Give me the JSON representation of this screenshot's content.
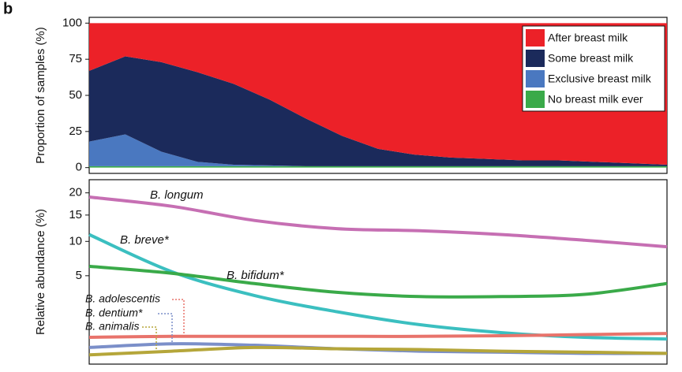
{
  "panel_label": "b",
  "chart_data": [
    {
      "type": "stacked_area",
      "y_label": "Proportion of samples (%)",
      "categories": [
        null,
        null,
        null,
        null,
        null,
        null,
        null,
        null,
        null,
        null,
        null,
        null,
        null,
        null,
        null,
        null,
        null
      ],
      "series": [
        {
          "name": "After breast milk",
          "color": "#ec2128",
          "values": [
            33,
            23,
            27,
            34,
            42,
            53,
            66,
            78,
            87,
            91,
            93,
            94,
            95,
            95,
            96,
            97,
            98
          ]
        },
        {
          "name": "Some breast milk",
          "color": "#1b2a5b",
          "values": [
            49,
            54,
            62,
            62,
            56,
            45.5,
            33,
            21,
            12,
            8,
            6,
            5,
            4,
            4,
            3,
            2,
            1
          ]
        },
        {
          "name": "Exclusive breast milk",
          "color": "#4a78c0",
          "values": [
            17,
            22,
            10,
            3,
            1,
            0.5,
            0,
            0,
            0,
            0,
            0,
            0,
            0,
            0,
            0,
            0,
            0
          ]
        },
        {
          "name": "No breast milk ever",
          "color": "#3aaa49",
          "values": [
            1,
            1,
            1,
            1,
            1,
            1,
            1,
            1,
            1,
            1,
            1,
            1,
            1,
            1,
            1,
            1,
            1
          ]
        }
      ],
      "ylim": [
        -4,
        104
      ],
      "yticks": [
        0,
        25,
        50,
        75,
        100
      ],
      "legend": "top-right"
    },
    {
      "type": "line",
      "y_label": "Relative abundance (%)",
      "scale": "sqrt",
      "categories": [
        null,
        null,
        null,
        null,
        null,
        null,
        null,
        null
      ],
      "series": [
        {
          "name": "B. longum",
          "color": "#c66fb3",
          "values": [
            19,
            16.9,
            13.9,
            12.3,
            11.9,
            11.2,
            10.2,
            9.1
          ]
        },
        {
          "name": "B. breve*",
          "color": "#3bbfc0",
          "values": [
            11.2,
            5.5,
            2.9,
            1.6,
            0.84,
            0.49,
            0.33,
            0.28
          ]
        },
        {
          "name": "B. bifidum*",
          "color": "#3aaa49",
          "values": [
            6.2,
            5.3,
            4.1,
            3.2,
            2.8,
            2.8,
            3.0,
            4.1
          ]
        },
        {
          "name": "B. adolescentis",
          "color": "#e8736b",
          "values": [
            0.33,
            0.36,
            0.36,
            0.36,
            0.36,
            0.38,
            0.42,
            0.46
          ]
        },
        {
          "name": "B. dentium*",
          "color": "#7b8fc9",
          "values": [
            0.09,
            0.16,
            0.13,
            0.07,
            0.04,
            0.03,
            0.02,
            0.02
          ]
        },
        {
          "name": "B. animalis",
          "color": "#b5a63a",
          "values": [
            0.01,
            0.04,
            0.09,
            0.07,
            0.06,
            0.04,
            0.03,
            0.02
          ]
        }
      ],
      "ylim": [
        0,
        23.3
      ],
      "yticks": [
        5,
        10,
        15,
        20
      ]
    }
  ]
}
